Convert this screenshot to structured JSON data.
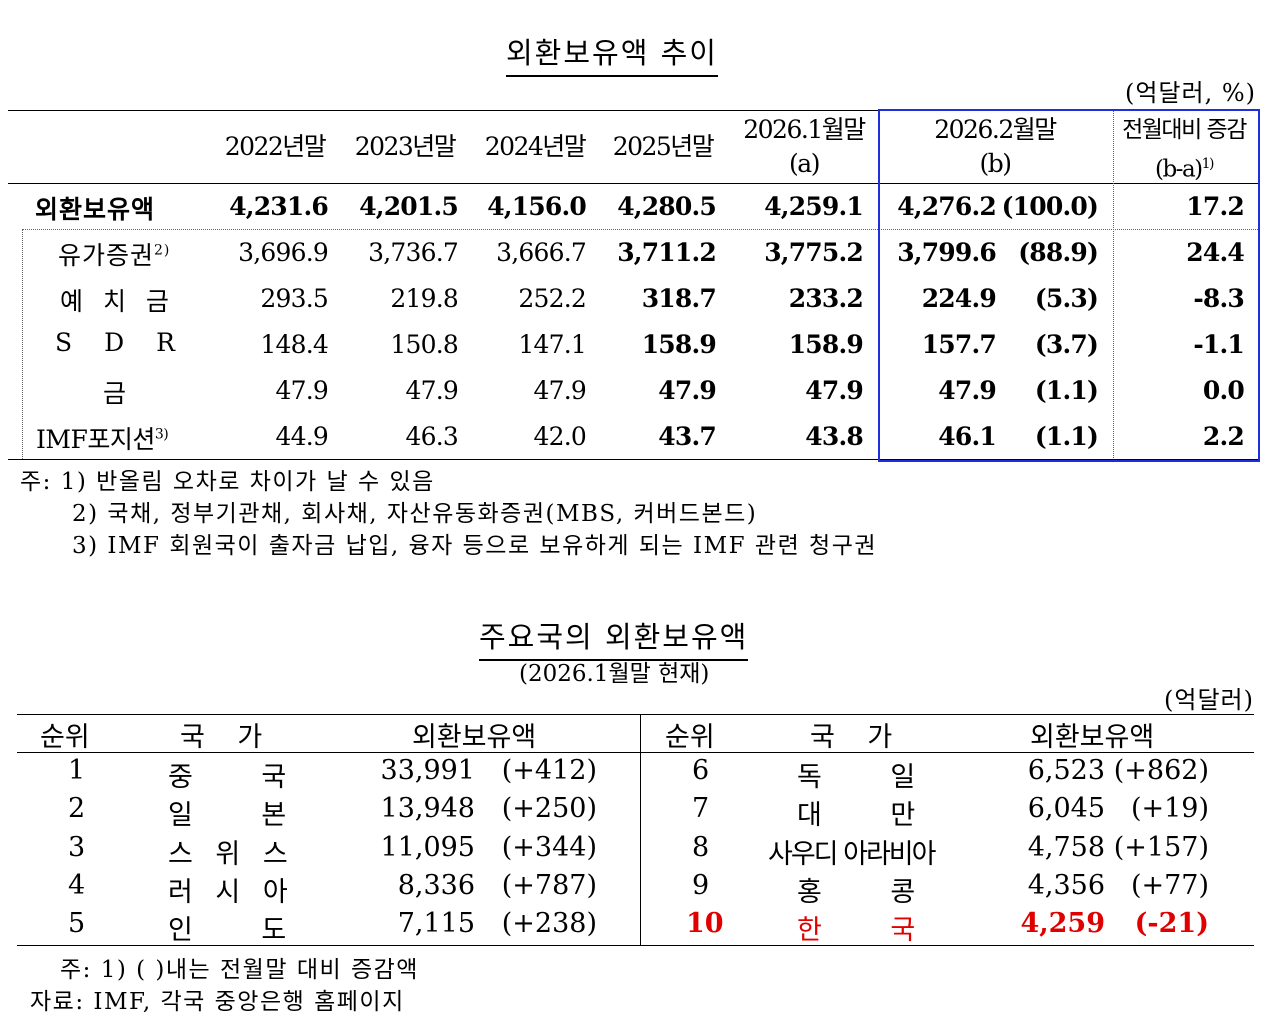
{
  "table1": {
    "title": "외환보유액 추이",
    "unit": "(억달러, %)",
    "headers": [
      {
        "line1": "2022년말",
        "line2": ""
      },
      {
        "line1": "2023년말",
        "line2": ""
      },
      {
        "line1": "2024년말",
        "line2": ""
      },
      {
        "line1": "2025년말",
        "line2": ""
      },
      {
        "line1": "2026.1월말",
        "line2": "(a)"
      },
      {
        "line1": "2026.2월말",
        "line2": "(b)"
      },
      {
        "line1": "전월대비 증감",
        "line2": "(b-a)",
        "sup": "1)"
      }
    ],
    "rows": [
      {
        "label": "외환보유액",
        "sup": "",
        "values": [
          "4,231.6",
          "4,201.5",
          "4,156.0",
          "4,280.5",
          "4,259.1",
          "4,276.2",
          "(100.0)",
          "17.2"
        ]
      },
      {
        "label": "유가증권",
        "sup": "2)",
        "values": [
          "3,696.9",
          "3,736.7",
          "3,666.7",
          "3,711.2",
          "3,775.2",
          "3,799.6",
          "(88.9)",
          "24.4"
        ]
      },
      {
        "label": "예 치 금",
        "sup": "",
        "values": [
          "293.5",
          "219.8",
          "252.2",
          "318.7",
          "233.2",
          "224.9",
          "(5.3)",
          "-8.3"
        ]
      },
      {
        "label": "S D R",
        "sup": "",
        "values": [
          "148.4",
          "150.8",
          "147.1",
          "158.9",
          "158.9",
          "157.7",
          "(3.7)",
          "-1.1"
        ]
      },
      {
        "label": "금",
        "sup": "",
        "values": [
          "47.9",
          "47.9",
          "47.9",
          "47.9",
          "47.9",
          "47.9",
          "(1.1)",
          "0.0"
        ]
      },
      {
        "label": "IMF포지션",
        "sup": "3)",
        "values": [
          "44.9",
          "46.3",
          "42.0",
          "43.7",
          "43.8",
          "46.1",
          "(1.1)",
          "2.2"
        ]
      }
    ],
    "notes": [
      "주: 1) 반올림 오차로 차이가 날 수 있음",
      "2) 국채, 정부기관채, 회사채, 자산유동화증권(MBS, 커버드본드)",
      "3) IMF 회원국이 출자금 납입, 융자 등으로 보유하게 되는 IMF 관련 청구권"
    ]
  },
  "table2": {
    "title": "주요국의 외환보유액",
    "subtitle": "(2026.1월말 현재)",
    "unit": "(억달러)",
    "headers": {
      "rank": "순위",
      "country": "국 가",
      "reserves": "외환보유액"
    },
    "left": [
      {
        "rank": "1",
        "country": "중 국",
        "value": "33,991",
        "change": "(+412)"
      },
      {
        "rank": "2",
        "country": "일 본",
        "value": "13,948",
        "change": "(+250)"
      },
      {
        "rank": "3",
        "country": "스 위 스",
        "value": "11,095",
        "change": "(+344)"
      },
      {
        "rank": "4",
        "country": "러 시 아",
        "value": "8,336",
        "change": "(+787)"
      },
      {
        "rank": "5",
        "country": "인 도",
        "value": "7,115",
        "change": "(+238)"
      }
    ],
    "right": [
      {
        "rank": "6",
        "country": "독 일",
        "value": "6,523",
        "change": "(+862)"
      },
      {
        "rank": "7",
        "country": "대 만",
        "value": "6,045",
        "change": "(+19)"
      },
      {
        "rank": "8",
        "country": "사우디 아라비아",
        "value": "4,758",
        "change": "(+157)"
      },
      {
        "rank": "9",
        "country": "홍 콩",
        "value": "4,356",
        "change": "(+77)"
      },
      {
        "rank": "10",
        "country": "한 국",
        "value": "4,259",
        "change": "(-21)"
      }
    ],
    "notes": [
      "주: 1) ( )내는 전월말 대비 증감액",
      "자료: IMF, 각국 중앙은행 홈페이지"
    ]
  },
  "colors": {
    "highlight_box": "#1f2fe0",
    "korea_row": "#e00000"
  }
}
